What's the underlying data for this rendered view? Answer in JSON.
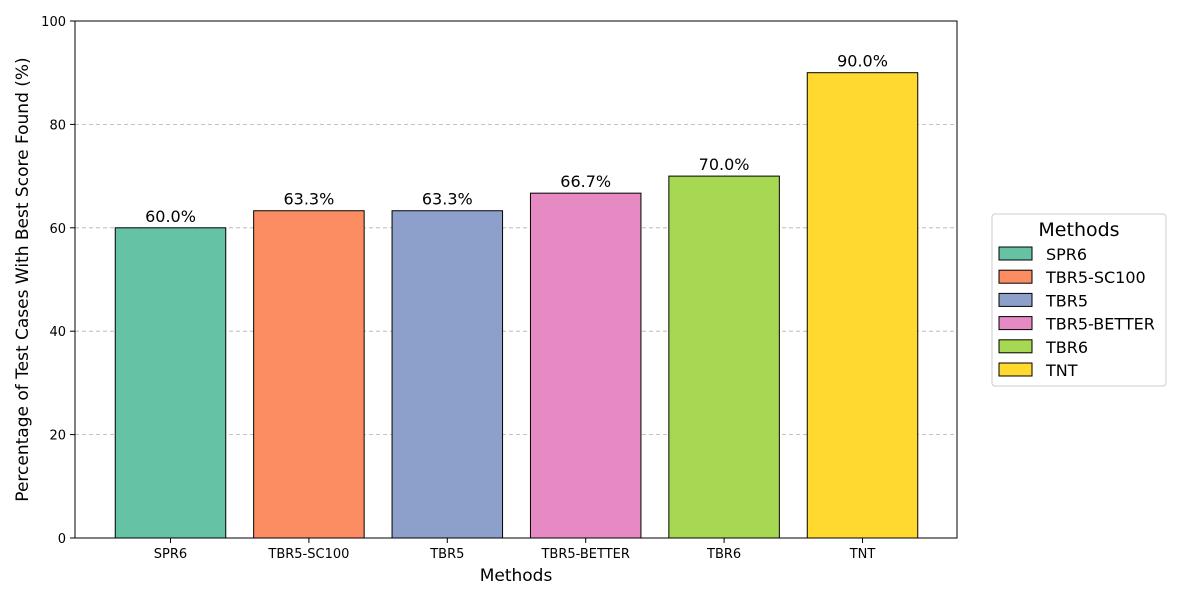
{
  "chart_data": {
    "type": "bar",
    "categories": [
      "SPR6",
      "TBR5-SC100",
      "TBR5",
      "TBR5-BETTER",
      "TBR6",
      "TNT"
    ],
    "values": [
      60.0,
      63.3,
      63.3,
      66.7,
      70.0,
      90.0
    ],
    "value_labels": [
      "60.0%",
      "63.3%",
      "63.3%",
      "66.7%",
      "70.0%",
      "90.0%"
    ],
    "colors": [
      "#66c2a5",
      "#fc8d62",
      "#8da0cb",
      "#e78ac3",
      "#a6d854",
      "#ffd92f"
    ],
    "title": "",
    "xlabel": "Methods",
    "ylabel": "Percentage of Test Cases With Best Score Found (%)",
    "ylim": [
      0,
      100
    ],
    "yticks": [
      0,
      20,
      40,
      60,
      80,
      100
    ],
    "grid": "y-dashed",
    "legend": {
      "title": "Methods",
      "placement": "right",
      "entries": [
        "SPR6",
        "TBR5-SC100",
        "TBR5",
        "TBR5-BETTER",
        "TBR6",
        "TNT"
      ]
    }
  }
}
